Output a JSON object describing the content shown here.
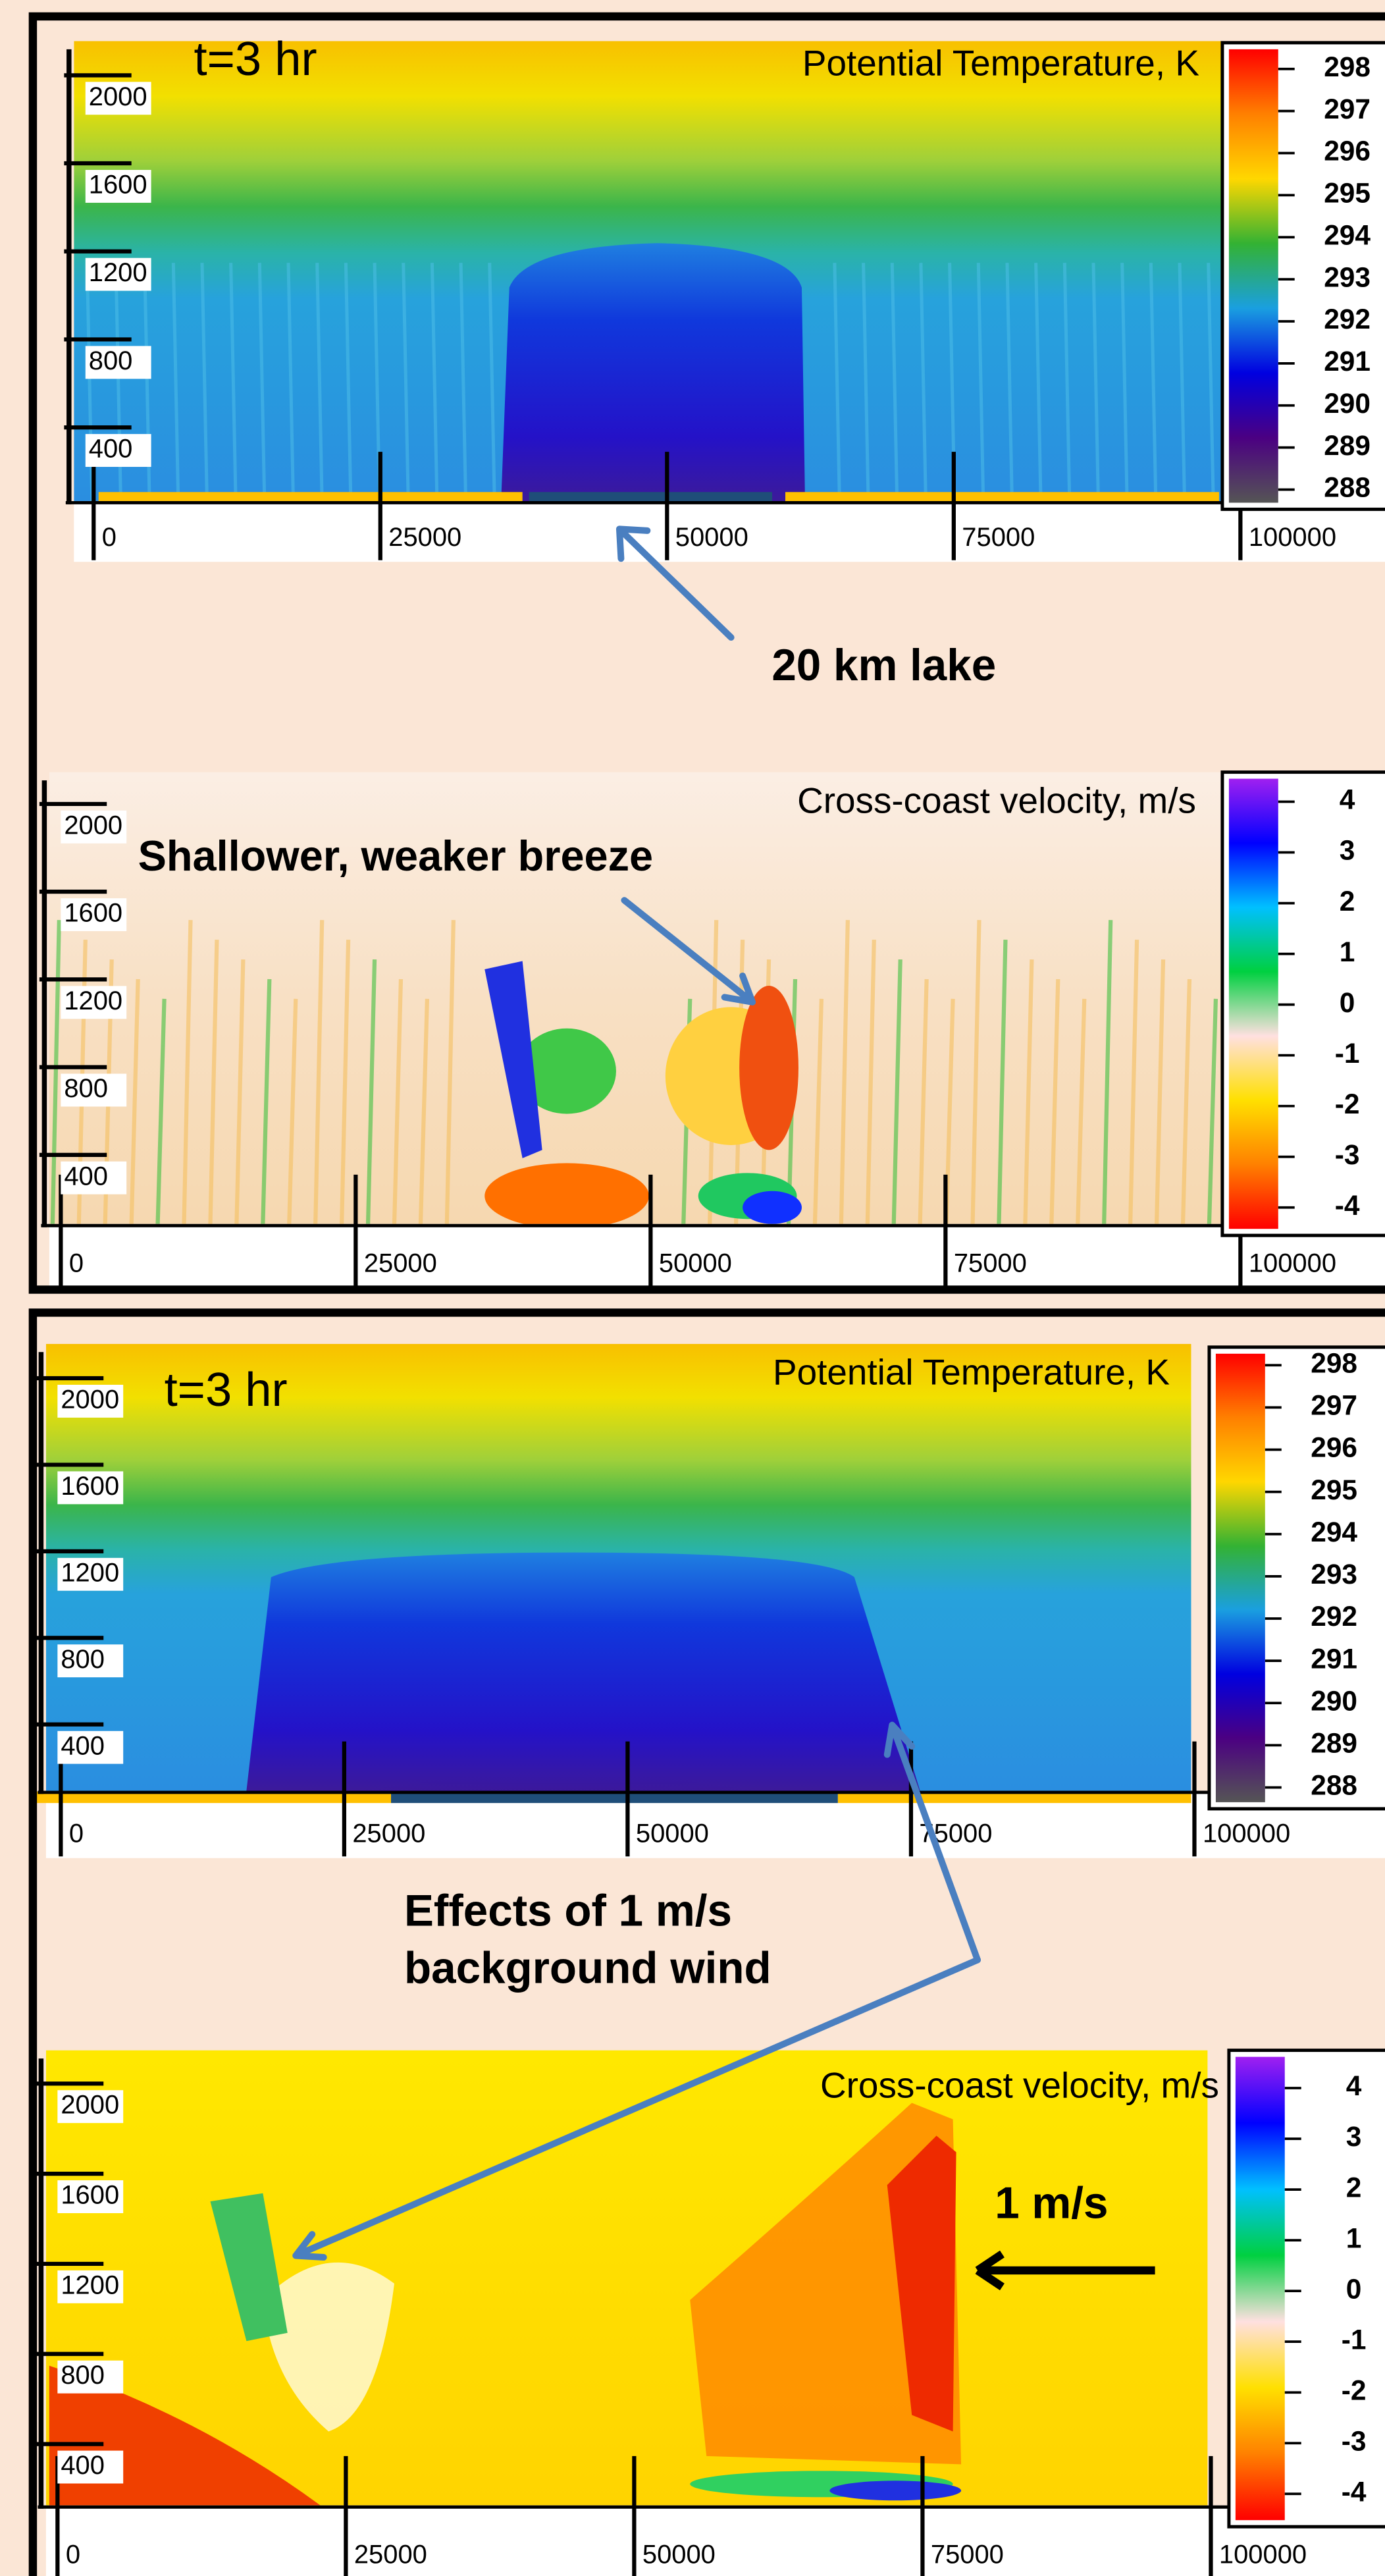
{
  "chart_data": [
    {
      "type": "heatmap",
      "title": "Potential Temperature, K",
      "annotation": "t=3 hr",
      "xlim": [
        0,
        100000
      ],
      "xticks": [
        0,
        25000,
        50000,
        75000,
        100000
      ],
      "ylim": [
        170,
        2260
      ],
      "yticks": [
        400,
        800,
        1200,
        1600,
        2000
      ],
      "colorbar_ticks": [
        298,
        297,
        296,
        295,
        294,
        293,
        292,
        291,
        290,
        289,
        288
      ],
      "colors": [
        "#ff0000",
        "#ff8000",
        "#ffd700",
        "#33b233",
        "#1a9fe0",
        "#0000e0",
        "#4b0082",
        "#555555"
      ]
    },
    {
      "type": "heatmap",
      "title": "Cross-coast velocity, m/s",
      "xlim": [
        0,
        100000
      ],
      "xticks": [
        0,
        25000,
        50000,
        75000,
        100000
      ],
      "ylim": [
        190,
        2250
      ],
      "yticks": [
        400,
        800,
        1200,
        1600,
        2000
      ],
      "colorbar_ticks": [
        4,
        3,
        2,
        1,
        0,
        -1,
        -2,
        -3,
        -4
      ],
      "colors": [
        "#a020f0",
        "#0000ff",
        "#00c0ff",
        "#00d040",
        "#ffe0e0",
        "#ffe000",
        "#ff8000",
        "#ff0000"
      ]
    },
    {
      "type": "heatmap",
      "title": "Potential Temperature, K",
      "annotation": "t=3 hr",
      "xlim": [
        0,
        100000
      ],
      "xticks": [
        0,
        25000,
        50000,
        75000,
        100000
      ],
      "ylim": [
        200,
        2265
      ],
      "yticks": [
        400,
        800,
        1200,
        1600,
        2000
      ],
      "colorbar_ticks": [
        298,
        297,
        296,
        295,
        294,
        293,
        292,
        291,
        290,
        289,
        288
      ],
      "colors": [
        "#ff0000",
        "#ff8000",
        "#ffd700",
        "#33b233",
        "#1a9fe0",
        "#0000e0",
        "#4b0082",
        "#555555"
      ]
    },
    {
      "type": "heatmap",
      "title": "Cross-coast velocity, m/s",
      "xlim": [
        0,
        100000
      ],
      "xticks": [
        0,
        25000,
        50000,
        75000,
        100000
      ],
      "ylim": [
        230,
        2250
      ],
      "yticks": [
        400,
        800,
        1200,
        1600,
        2000
      ],
      "colorbar_ticks": [
        4,
        3,
        2,
        1,
        0,
        -1,
        -2,
        -3,
        -4
      ],
      "colors": [
        "#a020f0",
        "#0000ff",
        "#00c0ff",
        "#00d040",
        "#ffe0e0",
        "#ffe000",
        "#ff8000",
        "#ff0000"
      ]
    }
  ],
  "annotations": [
    {
      "text": "20 km lake"
    },
    {
      "text": "Shallower, weaker breeze"
    },
    {
      "lines": [
        "Effects of 1 m/s",
        "background wind"
      ]
    },
    {
      "text": "1 m/s"
    }
  ]
}
